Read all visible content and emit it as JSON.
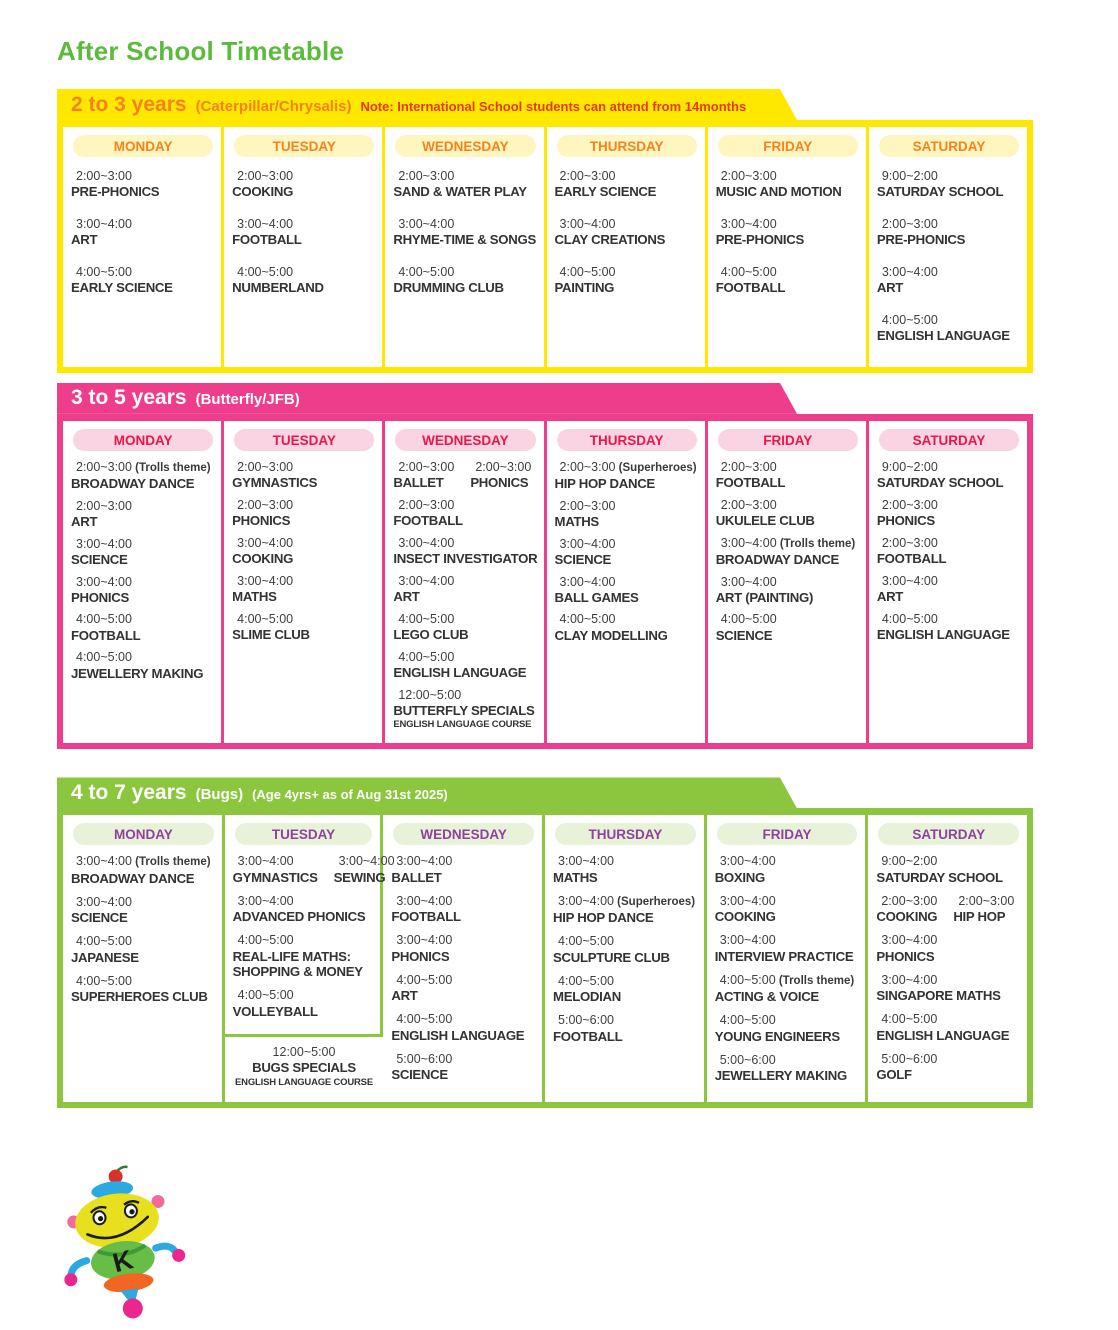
{
  "page_title": "After School Timetable",
  "mascot": {
    "letter": "K"
  },
  "sections": [
    {
      "id": "2to3",
      "title": "2 to 3 years",
      "subtitle": "(Caterpillar/Chrysalis)",
      "note": "Note: International School students can attend from 14months",
      "colors": {
        "accent": "#FFE800",
        "banner_text": "#F5821F",
        "note_text": "#E8380D",
        "pill_bg": "#FFF5BE",
        "pill_text": "#F5821F"
      },
      "days": [
        {
          "label": "MONDAY",
          "entries": [
            {
              "time": "2:00~3:00",
              "name": "PRE-PHONICS"
            },
            {
              "time": "3:00~4:00",
              "name": "ART"
            },
            {
              "time": "4:00~5:00",
              "name": "EARLY SCIENCE"
            }
          ]
        },
        {
          "label": "TUESDAY",
          "entries": [
            {
              "time": "2:00~3:00",
              "name": "COOKING"
            },
            {
              "time": "3:00~4:00",
              "name": "FOOTBALL"
            },
            {
              "time": "4:00~5:00",
              "name": "NUMBERLAND"
            }
          ]
        },
        {
          "label": "WEDNESDAY",
          "entries": [
            {
              "time": "2:00~3:00",
              "name": "SAND & WATER PLAY"
            },
            {
              "time": "3:00~4:00",
              "name": "RHYME-TIME & SONGS"
            },
            {
              "time": "4:00~5:00",
              "name": "DRUMMING CLUB"
            }
          ]
        },
        {
          "label": "THURSDAY",
          "entries": [
            {
              "time": "2:00~3:00",
              "name": "EARLY SCIENCE"
            },
            {
              "time": "3:00~4:00",
              "name": "CLAY CREATIONS"
            },
            {
              "time": "4:00~5:00",
              "name": "PAINTING"
            }
          ]
        },
        {
          "label": "FRIDAY",
          "entries": [
            {
              "time": "2:00~3:00",
              "name": "MUSIC AND MOTION"
            },
            {
              "time": "3:00~4:00",
              "name": "PRE-PHONICS"
            },
            {
              "time": "4:00~5:00",
              "name": "FOOTBALL"
            }
          ]
        },
        {
          "label": "SATURDAY",
          "entries": [
            {
              "time": "9:00~2:00",
              "name": "SATURDAY SCHOOL"
            },
            {
              "time": "2:00~3:00",
              "name": "PRE-PHONICS"
            },
            {
              "time": "3:00~4:00",
              "name": "ART"
            },
            {
              "time": "4:00~5:00",
              "name": "ENGLISH LANGUAGE"
            }
          ]
        }
      ]
    },
    {
      "id": "3to5",
      "title": "3 to 5 years",
      "subtitle": "(Butterfly/JFB)",
      "note": "",
      "colors": {
        "accent": "#EE3D8B",
        "banner_text": "#FFFFFF",
        "note_text": "#FFFFFF",
        "pill_bg": "#FAD4E3",
        "pill_text": "#E8174B"
      },
      "days": [
        {
          "label": "MONDAY",
          "entries": [
            {
              "time": "2:00~3:00",
              "note": "(Trolls theme)",
              "name": "BROADWAY DANCE"
            },
            {
              "time": "2:00~3:00",
              "name": "ART"
            },
            {
              "time": "3:00~4:00",
              "name": "SCIENCE"
            },
            {
              "time": "3:00~4:00",
              "name": "PHONICS"
            },
            {
              "time": "4:00~5:00",
              "name": "FOOTBALL"
            },
            {
              "time": "4:00~5:00",
              "name": "JEWELLERY MAKING"
            }
          ]
        },
        {
          "label": "TUESDAY",
          "entries": [
            {
              "time": "2:00~3:00",
              "name": "GYMNASTICS"
            },
            {
              "time": "2:00~3:00",
              "name": "PHONICS"
            },
            {
              "time": "3:00~4:00",
              "name": "COOKING"
            },
            {
              "time": "3:00~4:00",
              "name": "MATHS"
            },
            {
              "time": "4:00~5:00",
              "name": "SLIME CLUB"
            }
          ]
        },
        {
          "label": "WEDNESDAY",
          "entries": [
            {
              "pair": [
                {
                  "time": "2:00~3:00",
                  "name": "BALLET"
                },
                {
                  "time": "2:00~3:00",
                  "name": "PHONICS"
                }
              ]
            },
            {
              "time": "2:00~3:00",
              "name": "FOOTBALL"
            },
            {
              "time": "3:00~4:00",
              "name": "INSECT INVESTIGATOR"
            },
            {
              "time": "3:00~4:00",
              "name": "ART"
            },
            {
              "time": "4:00~5:00",
              "name": "LEGO CLUB"
            },
            {
              "time": "4:00~5:00",
              "name": "ENGLISH LANGUAGE"
            },
            {
              "time": "12:00~5:00",
              "name": "BUTTERFLY SPECIALS",
              "sub": "ENGLISH LANGUAGE COURSE"
            }
          ]
        },
        {
          "label": "THURSDAY",
          "entries": [
            {
              "time": "2:00~3:00",
              "note": "(Superheroes)",
              "name": "HIP HOP DANCE"
            },
            {
              "time": "2:00~3:00",
              "name": "MATHS"
            },
            {
              "time": "3:00~4:00",
              "name": "SCIENCE"
            },
            {
              "time": "3:00~4:00",
              "name": "BALL GAMES"
            },
            {
              "time": "4:00~5:00",
              "name": "CLAY MODELLING"
            }
          ]
        },
        {
          "label": "FRIDAY",
          "entries": [
            {
              "time": "2:00~3:00",
              "name": "FOOTBALL"
            },
            {
              "time": "2:00~3:00",
              "name": "UKULELE CLUB"
            },
            {
              "time": "3:00~4:00",
              "note": "(Trolls theme)",
              "name": "BROADWAY DANCE"
            },
            {
              "time": "3:00~4:00",
              "name": "ART (PAINTING)"
            },
            {
              "time": "4:00~5:00",
              "name": "SCIENCE"
            }
          ]
        },
        {
          "label": "SATURDAY",
          "entries": [
            {
              "time": "9:00~2:00",
              "name": "SATURDAY SCHOOL"
            },
            {
              "time": "2:00~3:00",
              "name": "PHONICS"
            },
            {
              "time": "2:00~3:00",
              "name": "FOOTBALL"
            },
            {
              "time": "3:00~4:00",
              "name": "ART"
            },
            {
              "time": "4:00~5:00",
              "name": "ENGLISH LANGUAGE"
            }
          ]
        }
      ]
    },
    {
      "id": "4to7",
      "title": "4 to 7 years",
      "subtitle": "(Bugs)",
      "note": "(Age 4yrs+ as of Aug 31st 2025)",
      "colors": {
        "accent": "#8CC63F",
        "banner_text": "#FFFFFF",
        "note_text": "#FFFFFF",
        "pill_bg": "#E7F2D8",
        "pill_text": "#9040A0"
      },
      "days": [
        {
          "label": "MONDAY",
          "entries": [
            {
              "time": "3:00~4:00",
              "note": "(Trolls theme)",
              "name": "BROADWAY DANCE"
            },
            {
              "time": "3:00~4:00",
              "name": "SCIENCE"
            },
            {
              "time": "4:00~5:00",
              "name": "JAPANESE"
            },
            {
              "time": "4:00~5:00",
              "name": "SUPERHEROES CLUB"
            }
          ]
        },
        {
          "label": "TUESDAY",
          "specials": {
            "time": "12:00~5:00",
            "name": "BUGS SPECIALS",
            "sub": "ENGLISH LANGUAGE COURSE"
          },
          "entries": [
            {
              "pair": [
                {
                  "time": "3:00~4:00",
                  "name": "GYMNASTICS"
                },
                {
                  "time": "3:00~4:00",
                  "name": "SEWING"
                }
              ]
            },
            {
              "time": "3:00~4:00",
              "name": "ADVANCED PHONICS"
            },
            {
              "time": "4:00~5:00",
              "name": "REAL-LIFE MATHS: SHOPPING & MONEY"
            },
            {
              "time": "4:00~5:00",
              "name": "VOLLEYBALL"
            }
          ]
        },
        {
          "label": "WEDNESDAY",
          "entries": [
            {
              "time": "3:00~4:00",
              "name": "BALLET"
            },
            {
              "time": "3:00~4:00",
              "name": "FOOTBALL"
            },
            {
              "time": "3:00~4:00",
              "name": "PHONICS"
            },
            {
              "time": "4:00~5:00",
              "name": "ART"
            },
            {
              "time": "4:00~5:00",
              "name": "ENGLISH LANGUAGE"
            },
            {
              "time": "5:00~6:00",
              "name": "SCIENCE"
            }
          ]
        },
        {
          "label": "THURSDAY",
          "entries": [
            {
              "time": "3:00~4:00",
              "name": "MATHS"
            },
            {
              "time": "3:00~4:00",
              "note": "(Superheroes)",
              "name": "HIP HOP DANCE"
            },
            {
              "time": "4:00~5:00",
              "name": "SCULPTURE CLUB"
            },
            {
              "time": "4:00~5:00",
              "name": "MELODIAN"
            },
            {
              "time": "5:00~6:00",
              "name": "FOOTBALL"
            }
          ]
        },
        {
          "label": "FRIDAY",
          "entries": [
            {
              "time": "3:00~4:00",
              "name": "BOXING"
            },
            {
              "time": "3:00~4:00",
              "name": "COOKING"
            },
            {
              "time": "3:00~4:00",
              "name": "INTERVIEW PRACTICE"
            },
            {
              "time": "4:00~5:00",
              "note": "(Trolls theme)",
              "name": "ACTING & VOICE"
            },
            {
              "time": "4:00~5:00",
              "name": "YOUNG ENGINEERS"
            },
            {
              "time": "5:00~6:00",
              "name": "JEWELLERY MAKING"
            }
          ]
        },
        {
          "label": "SATURDAY",
          "entries": [
            {
              "time": "9:00~2:00",
              "name": "SATURDAY SCHOOL"
            },
            {
              "pair": [
                {
                  "time": "2:00~3:00",
                  "name": "COOKING"
                },
                {
                  "time": "2:00~3:00",
                  "name": "HIP HOP"
                }
              ]
            },
            {
              "time": "3:00~4:00",
              "name": "PHONICS"
            },
            {
              "time": "3:00~4:00",
              "name": "SINGAPORE MATHS"
            },
            {
              "time": "4:00~5:00",
              "name": "ENGLISH LANGUAGE"
            },
            {
              "time": "5:00~6:00",
              "name": "GOLF"
            }
          ]
        }
      ]
    }
  ]
}
